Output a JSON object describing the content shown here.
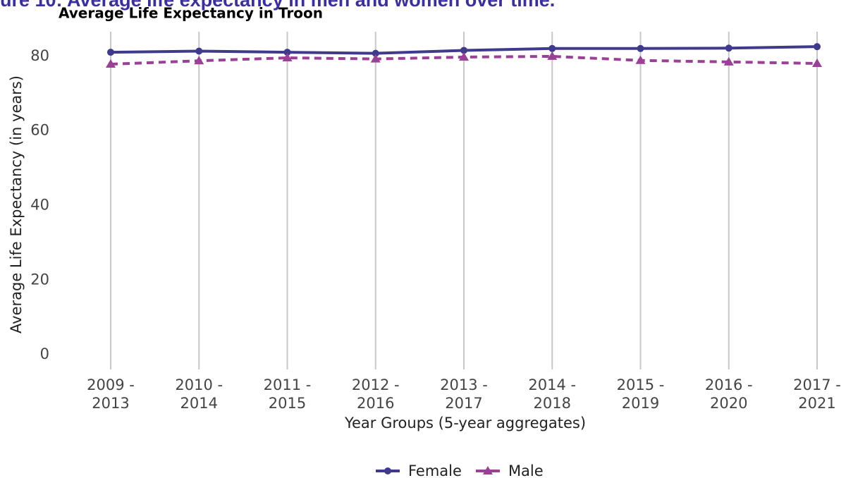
{
  "header": "ure 10: Average life expectancy in men and women over time.",
  "chart_data": {
    "type": "line",
    "title": "Average Life Expectancy in Troon",
    "x_label": "Year Groups (5-year aggregates)",
    "y_label": "Average Life Expectancy (in years)",
    "categories": [
      "2009 -\n2013",
      "2010 -\n2014",
      "2011 -\n2015",
      "2012 -\n2016",
      "2013 -\n2017",
      "2014 -\n2018",
      "2015 -\n2019",
      "2016 -\n2020",
      "2017 -\n2021"
    ],
    "series": [
      {
        "name": "Female",
        "color": "#3f3a8c",
        "marker": "circle",
        "dash": false,
        "values": [
          81.1,
          81.4,
          81.1,
          80.8,
          81.6,
          82.1,
          82.1,
          82.2,
          82.6
        ]
      },
      {
        "name": "Male",
        "color": "#9c3f96",
        "marker": "triangle",
        "dash": true,
        "values": [
          77.9,
          78.8,
          79.6,
          79.3,
          79.8,
          80.0,
          78.9,
          78.5,
          78.1
        ]
      }
    ],
    "ylim": [
      -3.2,
      86.6
    ],
    "yticks": [
      0,
      20,
      40,
      60,
      80
    ],
    "grid": "x",
    "legend": "bottom"
  }
}
